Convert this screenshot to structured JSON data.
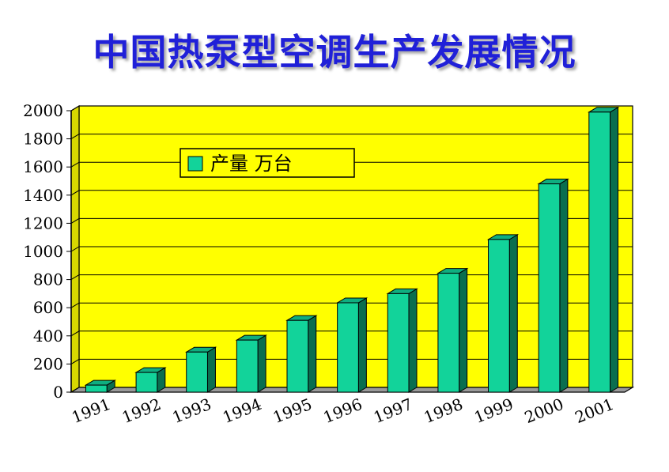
{
  "page": {
    "title": "中国热泵型空调生产发展情况"
  },
  "colors": {
    "plot_background": "#ffff00",
    "bar_face": "#12d39a",
    "bar_side": "#0a6e4f",
    "bar_top": "#0fae80",
    "title": "#2020d8"
  },
  "chart_data": {
    "type": "bar",
    "title": "中国热泵型空调生产发展情况",
    "categories": [
      "1991",
      "1992",
      "1993",
      "1994",
      "1995",
      "1996",
      "1997",
      "1998",
      "1999",
      "2000",
      "2001"
    ],
    "series": [
      {
        "name": "产量  万台",
        "values": [
          50,
          140,
          285,
          370,
          510,
          635,
          700,
          845,
          1085,
          1480,
          1990
        ]
      }
    ],
    "ylim": [
      0,
      2000
    ],
    "yticks": [
      0,
      200,
      400,
      600,
      800,
      1000,
      1200,
      1400,
      1600,
      1800,
      2000
    ],
    "grid": true,
    "legend": "top-left",
    "xlabel": "",
    "ylabel": ""
  }
}
